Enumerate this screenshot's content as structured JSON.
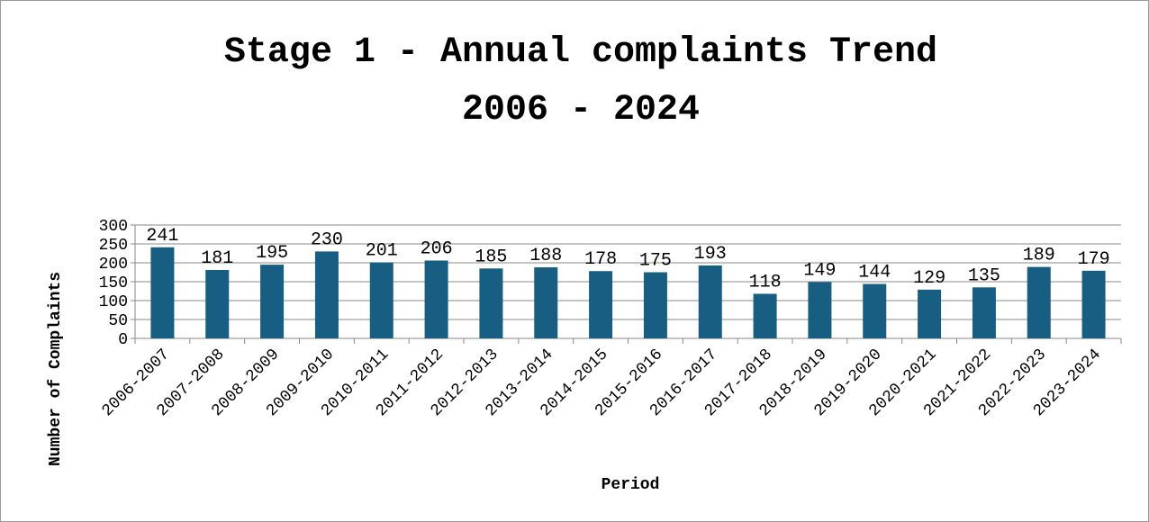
{
  "chart_data": {
    "type": "bar",
    "title": [
      "Stage 1 - Annual complaints Trend",
      "2006 - 2024"
    ],
    "xlabel": "Period",
    "ylabel": "Number of Complaints",
    "categories": [
      "2006-2007",
      "2007-2008",
      "2008-2009",
      "2009-2010",
      "2010-2011",
      "2011-2012",
      "2012-2013",
      "2013-2014",
      "2014-2015",
      "2015-2016",
      "2016-2017",
      "2017-2018",
      "2018-2019",
      "2019-2020",
      "2020-2021",
      "2021-2022",
      "2022-2023",
      "2023-2024"
    ],
    "values": [
      241,
      181,
      195,
      230,
      201,
      206,
      185,
      188,
      178,
      175,
      193,
      118,
      149,
      144,
      129,
      135,
      189,
      179
    ],
    "color": "#175e82",
    "ylim": [
      0,
      300
    ],
    "yticks": [
      0,
      50,
      100,
      150,
      200,
      250,
      300
    ],
    "grid": true
  }
}
